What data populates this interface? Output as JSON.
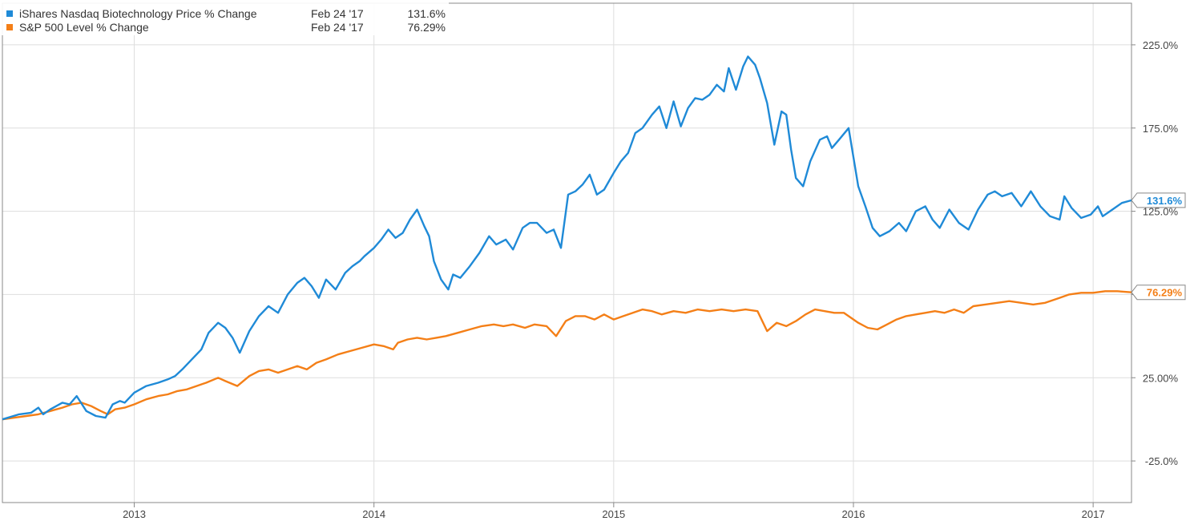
{
  "chart_data": {
    "type": "line",
    "ylim": [
      -50,
      250
    ],
    "y_ticks": [
      -25,
      25,
      75,
      125,
      175,
      225
    ],
    "y_tick_labels": [
      "-25.0%",
      "25.00%",
      "75.00%",
      "125.0%",
      "175.0%",
      "225.0%"
    ],
    "x_range": [
      2012.45,
      2017.16
    ],
    "x_ticks": [
      2013,
      2014,
      2015,
      2016,
      2017
    ],
    "x_tick_labels": [
      "2013",
      "2014",
      "2015",
      "2016",
      "2017"
    ],
    "grid": true,
    "legend_position": "top-left",
    "series": [
      {
        "name": "iShares Nasdaq Biotechnology Price % Change",
        "color": "#1f8ad7",
        "date_label": "Feb 24 '17",
        "last_value_label": "131.6%",
        "end_label": "131.6%",
        "points": [
          [
            2012.45,
            0
          ],
          [
            2012.52,
            3
          ],
          [
            2012.57,
            4
          ],
          [
            2012.6,
            7
          ],
          [
            2012.62,
            3
          ],
          [
            2012.65,
            6
          ],
          [
            2012.7,
            10
          ],
          [
            2012.73,
            9
          ],
          [
            2012.76,
            14
          ],
          [
            2012.8,
            5
          ],
          [
            2012.84,
            2
          ],
          [
            2012.88,
            1
          ],
          [
            2012.91,
            9
          ],
          [
            2012.94,
            11
          ],
          [
            2012.96,
            10
          ],
          [
            2013.0,
            16
          ],
          [
            2013.05,
            20
          ],
          [
            2013.1,
            22
          ],
          [
            2013.14,
            24
          ],
          [
            2013.17,
            26
          ],
          [
            2013.2,
            30
          ],
          [
            2013.24,
            36
          ],
          [
            2013.28,
            42
          ],
          [
            2013.31,
            52
          ],
          [
            2013.35,
            58
          ],
          [
            2013.38,
            55
          ],
          [
            2013.41,
            49
          ],
          [
            2013.44,
            40
          ],
          [
            2013.48,
            53
          ],
          [
            2013.52,
            62
          ],
          [
            2013.56,
            68
          ],
          [
            2013.6,
            64
          ],
          [
            2013.64,
            75
          ],
          [
            2013.68,
            82
          ],
          [
            2013.71,
            85
          ],
          [
            2013.74,
            80
          ],
          [
            2013.77,
            73
          ],
          [
            2013.8,
            84
          ],
          [
            2013.84,
            78
          ],
          [
            2013.88,
            88
          ],
          [
            2013.91,
            92
          ],
          [
            2013.94,
            95
          ],
          [
            2013.96,
            98
          ],
          [
            2014.0,
            103
          ],
          [
            2014.03,
            108
          ],
          [
            2014.06,
            114
          ],
          [
            2014.09,
            109
          ],
          [
            2014.12,
            112
          ],
          [
            2014.15,
            120
          ],
          [
            2014.18,
            126
          ],
          [
            2014.21,
            116
          ],
          [
            2014.23,
            110
          ],
          [
            2014.25,
            95
          ],
          [
            2014.28,
            84
          ],
          [
            2014.31,
            78
          ],
          [
            2014.33,
            87
          ],
          [
            2014.36,
            85
          ],
          [
            2014.4,
            92
          ],
          [
            2014.44,
            100
          ],
          [
            2014.48,
            110
          ],
          [
            2014.51,
            105
          ],
          [
            2014.55,
            108
          ],
          [
            2014.58,
            102
          ],
          [
            2014.62,
            115
          ],
          [
            2014.65,
            118
          ],
          [
            2014.68,
            118
          ],
          [
            2014.72,
            112
          ],
          [
            2014.75,
            114
          ],
          [
            2014.78,
            103
          ],
          [
            2014.81,
            135
          ],
          [
            2014.84,
            137
          ],
          [
            2014.87,
            141
          ],
          [
            2014.9,
            147
          ],
          [
            2014.93,
            135
          ],
          [
            2014.96,
            138
          ],
          [
            2015.0,
            148
          ],
          [
            2015.03,
            155
          ],
          [
            2015.06,
            160
          ],
          [
            2015.09,
            172
          ],
          [
            2015.12,
            175
          ],
          [
            2015.16,
            183
          ],
          [
            2015.19,
            188
          ],
          [
            2015.22,
            175
          ],
          [
            2015.25,
            191
          ],
          [
            2015.28,
            176
          ],
          [
            2015.31,
            187
          ],
          [
            2015.34,
            193
          ],
          [
            2015.37,
            192
          ],
          [
            2015.4,
            195
          ],
          [
            2015.43,
            201
          ],
          [
            2015.46,
            197
          ],
          [
            2015.48,
            211
          ],
          [
            2015.51,
            198
          ],
          [
            2015.54,
            212
          ],
          [
            2015.56,
            218
          ],
          [
            2015.59,
            213
          ],
          [
            2015.61,
            205
          ],
          [
            2015.64,
            190
          ],
          [
            2015.67,
            165
          ],
          [
            2015.7,
            185
          ],
          [
            2015.72,
            183
          ],
          [
            2015.74,
            162
          ],
          [
            2015.76,
            145
          ],
          [
            2015.79,
            140
          ],
          [
            2015.82,
            155
          ],
          [
            2015.86,
            168
          ],
          [
            2015.89,
            170
          ],
          [
            2015.91,
            163
          ],
          [
            2015.94,
            168
          ],
          [
            2015.98,
            175
          ],
          [
            2016.02,
            140
          ],
          [
            2016.05,
            128
          ],
          [
            2016.08,
            115
          ],
          [
            2016.11,
            110
          ],
          [
            2016.15,
            113
          ],
          [
            2016.19,
            118
          ],
          [
            2016.22,
            113
          ],
          [
            2016.26,
            125
          ],
          [
            2016.3,
            128
          ],
          [
            2016.33,
            120
          ],
          [
            2016.36,
            115
          ],
          [
            2016.4,
            126
          ],
          [
            2016.44,
            118
          ],
          [
            2016.48,
            114
          ],
          [
            2016.52,
            126
          ],
          [
            2016.56,
            135
          ],
          [
            2016.59,
            137
          ],
          [
            2016.62,
            134
          ],
          [
            2016.66,
            136
          ],
          [
            2016.7,
            128
          ],
          [
            2016.74,
            137
          ],
          [
            2016.78,
            128
          ],
          [
            2016.82,
            122
          ],
          [
            2016.86,
            120
          ],
          [
            2016.88,
            134
          ],
          [
            2016.91,
            127
          ],
          [
            2016.95,
            121
          ],
          [
            2016.99,
            123
          ],
          [
            2017.02,
            128
          ],
          [
            2017.04,
            122
          ],
          [
            2017.08,
            126
          ],
          [
            2017.12,
            130
          ],
          [
            2017.16,
            131.6
          ]
        ]
      },
      {
        "name": "S&P 500 Level % Change",
        "color": "#f47f17",
        "date_label": "Feb 24 '17",
        "last_value_label": "76.29%",
        "end_label": "76.29%",
        "points": [
          [
            2012.45,
            0
          ],
          [
            2012.5,
            1
          ],
          [
            2012.55,
            2
          ],
          [
            2012.6,
            3
          ],
          [
            2012.65,
            5
          ],
          [
            2012.7,
            7
          ],
          [
            2012.74,
            9
          ],
          [
            2012.78,
            10
          ],
          [
            2012.82,
            8
          ],
          [
            2012.86,
            5
          ],
          [
            2012.89,
            3
          ],
          [
            2012.92,
            6
          ],
          [
            2012.96,
            7
          ],
          [
            2013.0,
            9
          ],
          [
            2013.05,
            12
          ],
          [
            2013.1,
            14
          ],
          [
            2013.14,
            15
          ],
          [
            2013.18,
            17
          ],
          [
            2013.22,
            18
          ],
          [
            2013.26,
            20
          ],
          [
            2013.3,
            22
          ],
          [
            2013.35,
            25
          ],
          [
            2013.38,
            23
          ],
          [
            2013.43,
            20
          ],
          [
            2013.48,
            26
          ],
          [
            2013.52,
            29
          ],
          [
            2013.56,
            30
          ],
          [
            2013.6,
            28
          ],
          [
            2013.64,
            30
          ],
          [
            2013.68,
            32
          ],
          [
            2013.72,
            30
          ],
          [
            2013.76,
            34
          ],
          [
            2013.8,
            36
          ],
          [
            2013.85,
            39
          ],
          [
            2013.9,
            41
          ],
          [
            2013.95,
            43
          ],
          [
            2014.0,
            45
          ],
          [
            2014.04,
            44
          ],
          [
            2014.08,
            42
          ],
          [
            2014.1,
            46
          ],
          [
            2014.14,
            48
          ],
          [
            2014.18,
            49
          ],
          [
            2014.22,
            48
          ],
          [
            2014.26,
            49
          ],
          [
            2014.3,
            50
          ],
          [
            2014.35,
            52
          ],
          [
            2014.4,
            54
          ],
          [
            2014.45,
            56
          ],
          [
            2014.5,
            57
          ],
          [
            2014.54,
            56
          ],
          [
            2014.58,
            57
          ],
          [
            2014.63,
            55
          ],
          [
            2014.67,
            57
          ],
          [
            2014.72,
            56
          ],
          [
            2014.76,
            50
          ],
          [
            2014.8,
            59
          ],
          [
            2014.84,
            62
          ],
          [
            2014.88,
            62
          ],
          [
            2014.92,
            60
          ],
          [
            2014.96,
            63
          ],
          [
            2015.0,
            60
          ],
          [
            2015.04,
            62
          ],
          [
            2015.08,
            64
          ],
          [
            2015.12,
            66
          ],
          [
            2015.16,
            65
          ],
          [
            2015.2,
            63
          ],
          [
            2015.25,
            65
          ],
          [
            2015.3,
            64
          ],
          [
            2015.35,
            66
          ],
          [
            2015.4,
            65
          ],
          [
            2015.45,
            66
          ],
          [
            2015.5,
            65
          ],
          [
            2015.55,
            66
          ],
          [
            2015.6,
            65
          ],
          [
            2015.64,
            53
          ],
          [
            2015.68,
            58
          ],
          [
            2015.72,
            56
          ],
          [
            2015.76,
            59
          ],
          [
            2015.8,
            63
          ],
          [
            2015.84,
            66
          ],
          [
            2015.88,
            65
          ],
          [
            2015.92,
            64
          ],
          [
            2015.96,
            64
          ],
          [
            2016.02,
            58
          ],
          [
            2016.06,
            55
          ],
          [
            2016.1,
            54
          ],
          [
            2016.14,
            57
          ],
          [
            2016.18,
            60
          ],
          [
            2016.22,
            62
          ],
          [
            2016.26,
            63
          ],
          [
            2016.3,
            64
          ],
          [
            2016.34,
            65
          ],
          [
            2016.38,
            64
          ],
          [
            2016.42,
            66
          ],
          [
            2016.46,
            64
          ],
          [
            2016.5,
            68
          ],
          [
            2016.55,
            69
          ],
          [
            2016.6,
            70
          ],
          [
            2016.65,
            71
          ],
          [
            2016.7,
            70
          ],
          [
            2016.75,
            69
          ],
          [
            2016.8,
            70
          ],
          [
            2016.86,
            73
          ],
          [
            2016.9,
            75
          ],
          [
            2016.95,
            76
          ],
          [
            2017.0,
            76
          ],
          [
            2017.05,
            77
          ],
          [
            2017.1,
            77
          ],
          [
            2017.16,
            76.29
          ]
        ]
      }
    ]
  }
}
